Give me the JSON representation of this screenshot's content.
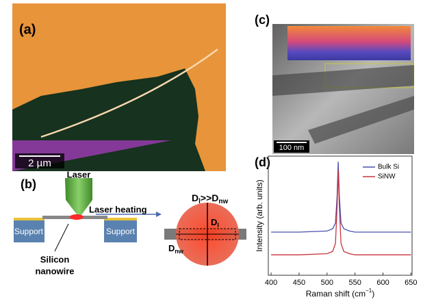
{
  "panel_a": {
    "label": "(a)",
    "scale_bar": "2 µm"
  },
  "panel_b": {
    "label": "(b)",
    "laser": "Laser",
    "laser_heating": "Laser heating",
    "support_left": "Support",
    "support_right": "Support",
    "wire_label": [
      "Silicon",
      "nanowire"
    ],
    "ratio": [
      "D",
      "l",
      ">>D",
      "nw"
    ],
    "dl": [
      "D",
      "l"
    ],
    "dnw": [
      "D",
      "nw"
    ]
  },
  "panel_c": {
    "label": "(c)",
    "scale_bar": "100 nm"
  },
  "panel_d": {
    "label": "(d)"
  },
  "chart_data": {
    "type": "line",
    "x_label": [
      "Raman shift (cm",
      "−1",
      ")"
    ],
    "y_label": "Intensity (arb. units)",
    "x": [
      400,
      450,
      500,
      510,
      515,
      518,
      520,
      522,
      525,
      530,
      540,
      550,
      600,
      650
    ],
    "series": [
      {
        "name": "Bulk Si",
        "color": "#4a4fb0",
        "values": [
          0.38,
          0.38,
          0.39,
          0.41,
          0.46,
          0.7,
          1.0,
          0.7,
          0.46,
          0.41,
          0.39,
          0.38,
          0.38,
          0.38
        ]
      },
      {
        "name": "SiNW",
        "color": "#c8323c",
        "values": [
          0.18,
          0.18,
          0.19,
          0.21,
          0.28,
          0.6,
          0.93,
          0.6,
          0.28,
          0.21,
          0.19,
          0.18,
          0.18,
          0.18
        ]
      }
    ],
    "xlim": [
      395,
      652
    ],
    "ylim": [
      0,
      1.05
    ],
    "xticks": [
      400,
      450,
      500,
      550,
      600,
      650
    ]
  }
}
